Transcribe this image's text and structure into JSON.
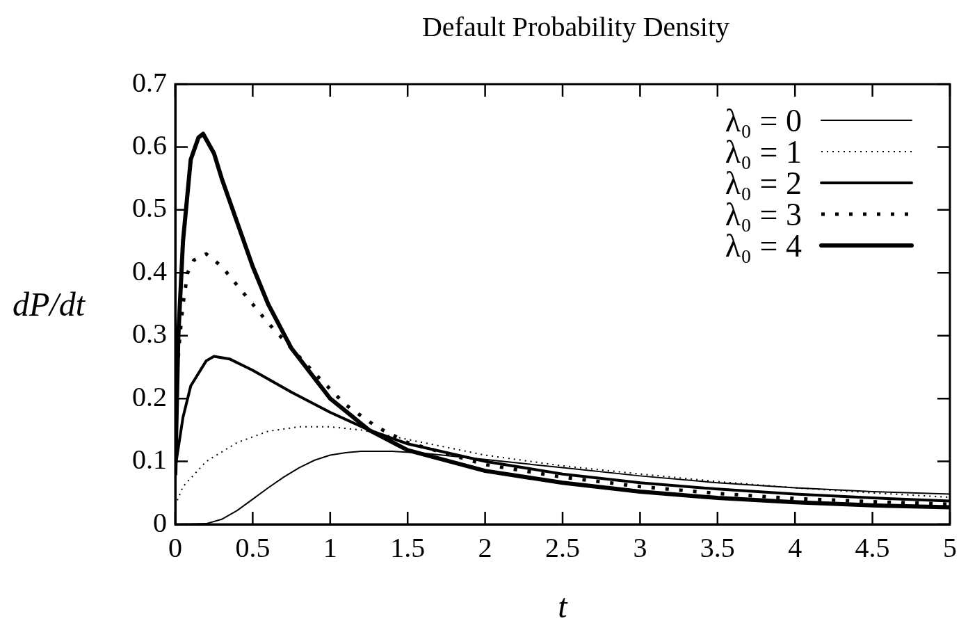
{
  "chart_data": {
    "type": "line",
    "title": "Default Probability Density",
    "xlabel": "t",
    "ylabel": "dP/dt",
    "xlim": [
      0,
      5
    ],
    "xticks": [
      0,
      0.5,
      1,
      1.5,
      2,
      2.5,
      3,
      3.5,
      4,
      4.5,
      5
    ],
    "ylim": [
      0,
      0.7
    ],
    "yticks": [
      0,
      0.1,
      0.2,
      0.3,
      0.4,
      0.5,
      0.6,
      0.7
    ],
    "grid": false,
    "legend": "top right",
    "marker": "none",
    "series": [
      {
        "name": "λ₀ = 0",
        "color": "#000000",
        "line_style": "solid",
        "x": [
          0,
          0.2,
          0.3,
          0.4,
          0.5,
          0.6,
          0.7,
          0.8,
          0.9,
          1.0,
          1.1,
          1.2,
          1.4,
          1.6,
          2,
          2.5,
          3,
          3.5,
          4,
          4.5,
          5
        ],
        "values": [
          0,
          0.001,
          0.008,
          0.022,
          0.04,
          0.058,
          0.075,
          0.09,
          0.102,
          0.11,
          0.114,
          0.116,
          0.116,
          0.113,
          0.103,
          0.09,
          0.077,
          0.066,
          0.058,
          0.052,
          0.048
        ]
      },
      {
        "name": "λ₀ = 1",
        "color": "#000000",
        "line_style": "dotted",
        "x": [
          0,
          0.05,
          0.2,
          0.4,
          0.6,
          0.8,
          1.0,
          1.2,
          1.5,
          2,
          2.5,
          3,
          3.5,
          4,
          4.5,
          5
        ],
        "values": [
          0.03,
          0.06,
          0.1,
          0.13,
          0.148,
          0.155,
          0.155,
          0.15,
          0.135,
          0.11,
          0.093,
          0.08,
          0.068,
          0.058,
          0.05,
          0.043
        ]
      },
      {
        "name": "λ₀ = 2",
        "color": "#000000",
        "line_style": "solid",
        "x": [
          0,
          0.05,
          0.1,
          0.2,
          0.25,
          0.35,
          0.5,
          0.75,
          1,
          1.25,
          1.5,
          2,
          2.5,
          3,
          3.5,
          4,
          4.5,
          5
        ],
        "values": [
          0.09,
          0.17,
          0.22,
          0.26,
          0.267,
          0.263,
          0.245,
          0.21,
          0.178,
          0.15,
          0.128,
          0.1,
          0.08,
          0.066,
          0.056,
          0.048,
          0.042,
          0.037
        ]
      },
      {
        "name": "λ₀ = 3",
        "color": "#000000",
        "line_style": "dotted",
        "x": [
          0,
          0.03,
          0.05,
          0.08,
          0.12,
          0.2,
          0.3,
          0.4,
          0.5,
          0.6,
          0.75,
          0.9,
          1.1,
          1.3,
          1.5,
          2,
          2.5,
          3,
          3.5,
          4,
          4.5,
          5
        ],
        "values": [
          0.2,
          0.3,
          0.35,
          0.4,
          0.42,
          0.43,
          0.41,
          0.38,
          0.35,
          0.32,
          0.28,
          0.24,
          0.19,
          0.155,
          0.13,
          0.095,
          0.075,
          0.06,
          0.049,
          0.041,
          0.036,
          0.032
        ]
      },
      {
        "name": "λ₀ = 4",
        "color": "#000000",
        "line_style": "solid",
        "x": [
          0,
          0.02,
          0.05,
          0.1,
          0.15,
          0.18,
          0.25,
          0.3,
          0.4,
          0.5,
          0.6,
          0.75,
          1,
          1.25,
          1.5,
          2,
          2.5,
          3,
          3.5,
          4,
          4.5,
          5
        ],
        "values": [
          0.08,
          0.3,
          0.45,
          0.58,
          0.615,
          0.621,
          0.59,
          0.55,
          0.48,
          0.41,
          0.35,
          0.28,
          0.2,
          0.15,
          0.118,
          0.085,
          0.066,
          0.052,
          0.042,
          0.035,
          0.03,
          0.027
        ]
      }
    ]
  }
}
